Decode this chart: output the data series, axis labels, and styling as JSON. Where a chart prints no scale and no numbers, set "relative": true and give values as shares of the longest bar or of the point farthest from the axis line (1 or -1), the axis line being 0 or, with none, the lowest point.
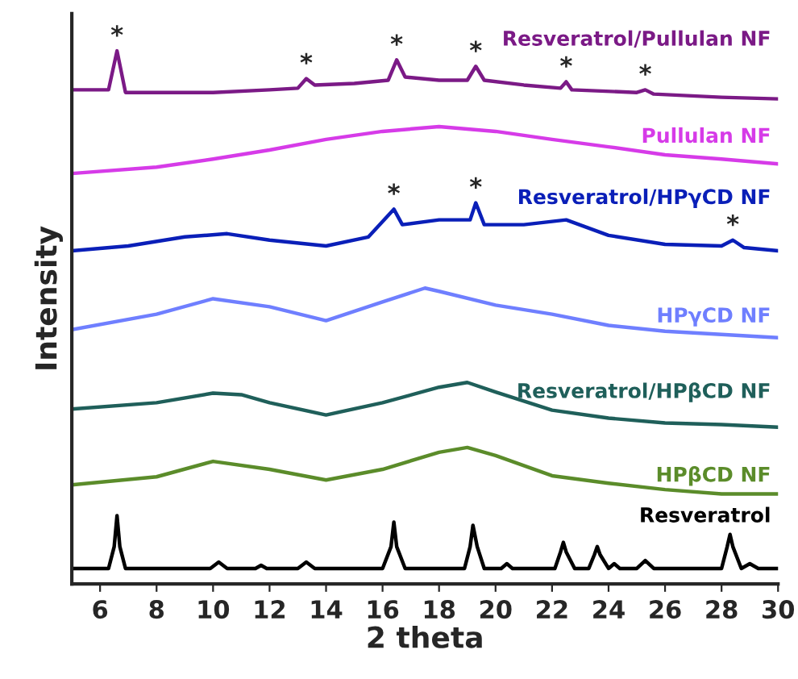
{
  "chart_data": {
    "type": "line",
    "relative": true,
    "xlabel": "2 theta",
    "ylabel": "Intensity",
    "xlim": [
      5,
      30
    ],
    "xticks": [
      6,
      8,
      10,
      12,
      14,
      16,
      18,
      20,
      22,
      24,
      26,
      28,
      30
    ],
    "tick_labels": "x",
    "grid": false,
    "legend": false,
    "marker": "none",
    "line_style": "solid",
    "series": [
      {
        "name": "Resveratrol",
        "color": "#000000",
        "x": [
          5,
          6.3,
          6.5,
          6.6,
          6.7,
          6.9,
          9.9,
          10.2,
          10.5,
          11.5,
          11.7,
          11.9,
          13.0,
          13.3,
          13.6,
          16.0,
          16.3,
          16.4,
          16.5,
          16.8,
          18.9,
          19.1,
          19.2,
          19.35,
          19.6,
          20.2,
          20.4,
          20.6,
          22.1,
          22.3,
          22.4,
          22.5,
          22.8,
          23.3,
          23.5,
          23.6,
          23.7,
          24.0,
          24.2,
          24.4,
          25.0,
          25.3,
          25.6,
          28.0,
          28.2,
          28.3,
          28.4,
          28.7,
          29.0,
          29.3,
          30
        ],
        "values": [
          0.029,
          0.029,
          0.07,
          0.128,
          0.07,
          0.029,
          0.029,
          0.041,
          0.029,
          0.029,
          0.035,
          0.029,
          0.029,
          0.041,
          0.029,
          0.029,
          0.07,
          0.116,
          0.07,
          0.029,
          0.029,
          0.07,
          0.11,
          0.07,
          0.029,
          0.029,
          0.038,
          0.029,
          0.029,
          0.06,
          0.078,
          0.06,
          0.029,
          0.029,
          0.055,
          0.07,
          0.055,
          0.029,
          0.038,
          0.029,
          0.029,
          0.044,
          0.029,
          0.029,
          0.07,
          0.093,
          0.07,
          0.029,
          0.038,
          0.029,
          0.029
        ]
      },
      {
        "name": "HPβCD NF",
        "color": "#5b8c2a",
        "x": [
          5,
          8,
          10,
          12,
          14,
          16,
          18,
          19,
          20,
          22,
          24,
          26,
          28,
          30
        ],
        "values": [
          0.186,
          0.201,
          0.23,
          0.215,
          0.195,
          0.215,
          0.247,
          0.256,
          0.241,
          0.203,
          0.189,
          0.177,
          0.169,
          0.169
        ]
      },
      {
        "name": "Resveratrol/HPβCD NF",
        "color": "#1f5f5a",
        "x": [
          5,
          8,
          10,
          11,
          12,
          14,
          16,
          18,
          19,
          20,
          22,
          24,
          26,
          28,
          30
        ],
        "values": [
          0.328,
          0.34,
          0.358,
          0.355,
          0.34,
          0.317,
          0.34,
          0.369,
          0.378,
          0.36,
          0.326,
          0.311,
          0.302,
          0.299,
          0.294
        ]
      },
      {
        "name": "HPγCD NF",
        "color": "#6f7fff",
        "x": [
          5,
          8,
          10,
          12,
          14,
          16,
          17.5,
          18,
          20,
          22,
          24,
          26,
          28,
          30
        ],
        "values": [
          0.477,
          0.506,
          0.535,
          0.52,
          0.494,
          0.529,
          0.555,
          0.549,
          0.523,
          0.506,
          0.485,
          0.474,
          0.468,
          0.462
        ]
      },
      {
        "name": "Resveratrol/HPγCD NF",
        "color": "#0a1fb8",
        "x": [
          5,
          7,
          9,
          10.5,
          12,
          14,
          15.5,
          16.4,
          16.7,
          18,
          19.1,
          19.3,
          19.6,
          21,
          22.5,
          24,
          26,
          28,
          28.4,
          28.8,
          30
        ],
        "values": [
          0.625,
          0.634,
          0.651,
          0.657,
          0.645,
          0.634,
          0.651,
          0.703,
          0.674,
          0.683,
          0.683,
          0.715,
          0.674,
          0.674,
          0.683,
          0.654,
          0.637,
          0.634,
          0.645,
          0.631,
          0.625
        ]
      },
      {
        "name": "Pullulan NF",
        "color": "#d63be8",
        "x": [
          5,
          8,
          10,
          12,
          14,
          16,
          18,
          20,
          22,
          24,
          26,
          28,
          30
        ],
        "values": [
          0.77,
          0.782,
          0.797,
          0.814,
          0.834,
          0.849,
          0.858,
          0.849,
          0.834,
          0.82,
          0.805,
          0.797,
          0.788
        ]
      },
      {
        "name": "Resveratrol/Pullulan NF",
        "color": "#7b1a86",
        "x": [
          5,
          6.3,
          6.6,
          6.9,
          10,
          12,
          13.0,
          13.3,
          13.6,
          15,
          16.2,
          16.5,
          16.8,
          18,
          19.0,
          19.3,
          19.6,
          21,
          22.3,
          22.5,
          22.7,
          25.0,
          25.3,
          25.6,
          28,
          30
        ],
        "values": [
          0.927,
          0.927,
          1.0,
          0.922,
          0.922,
          0.927,
          0.93,
          0.948,
          0.936,
          0.939,
          0.945,
          0.983,
          0.951,
          0.945,
          0.945,
          0.971,
          0.945,
          0.936,
          0.93,
          0.942,
          0.927,
          0.922,
          0.927,
          0.919,
          0.913,
          0.91
        ]
      }
    ],
    "annotations": [
      {
        "text": "*",
        "x": 6.6,
        "y": 1.0
      },
      {
        "text": "*",
        "x": 13.3,
        "y": 0.948
      },
      {
        "text": "*",
        "x": 16.5,
        "y": 0.983
      },
      {
        "text": "*",
        "x": 19.3,
        "y": 0.971
      },
      {
        "text": "*",
        "x": 22.5,
        "y": 0.942
      },
      {
        "text": "*",
        "x": 25.3,
        "y": 0.927
      },
      {
        "text": "*",
        "x": 16.4,
        "y": 0.703
      },
      {
        "text": "*",
        "x": 19.3,
        "y": 0.715
      },
      {
        "text": "*",
        "x": 28.4,
        "y": 0.645
      }
    ]
  }
}
